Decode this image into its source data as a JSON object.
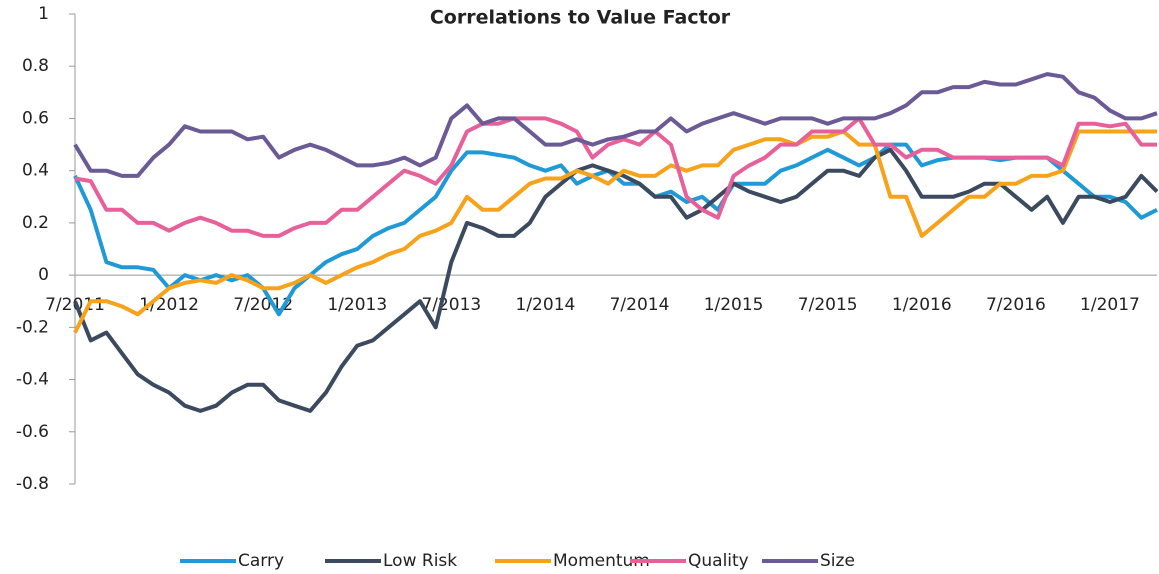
{
  "chart_data": {
    "type": "line",
    "title": "Correlations to Value Factor",
    "categories": [
      "7/2011",
      null,
      null,
      null,
      null,
      null,
      "1/2012",
      null,
      null,
      null,
      null,
      null,
      "7/2012",
      null,
      null,
      null,
      null,
      null,
      "1/2013",
      null,
      null,
      null,
      null,
      null,
      "7/2013",
      null,
      null,
      null,
      null,
      null,
      "1/2014",
      null,
      null,
      null,
      null,
      null,
      "7/2014",
      null,
      null,
      null,
      null,
      null,
      "1/2015",
      null,
      null,
      null,
      null,
      null,
      "7/2015",
      null,
      null,
      null,
      null,
      null,
      "1/2016",
      null,
      null,
      null,
      null,
      null,
      "7/2016",
      null,
      null,
      null,
      null,
      null,
      "1/2017",
      null,
      null,
      null
    ],
    "series": [
      {
        "name": "Carry",
        "color": "#1f9ad6",
        "values": [
          0.38,
          0.25,
          0.05,
          0.03,
          0.03,
          0.02,
          -0.05,
          0,
          -0.02,
          0,
          -0.02,
          0,
          -0.05,
          -0.15,
          -0.05,
          0,
          0.05,
          0.08,
          0.1,
          0.15,
          0.18,
          0.2,
          0.25,
          0.3,
          0.4,
          0.47,
          0.47,
          0.46,
          0.45,
          0.42,
          0.4,
          0.42,
          0.35,
          0.38,
          0.4,
          0.35,
          0.35,
          0.3,
          0.32,
          0.28,
          0.3,
          0.25,
          0.35,
          0.35,
          0.35,
          0.4,
          0.42,
          0.45,
          0.48,
          0.45,
          0.42,
          0.45,
          0.5,
          0.5,
          0.42,
          0.44,
          0.45,
          0.45,
          0.45,
          0.44,
          0.45,
          0.45,
          0.45,
          0.4,
          0.35,
          0.3,
          0.3,
          0.28,
          0.22,
          0.25
        ]
      },
      {
        "name": "Low Risk",
        "color": "#3b4a5e",
        "values": [
          -0.1,
          -0.25,
          -0.22,
          -0.3,
          -0.38,
          -0.42,
          -0.45,
          -0.5,
          -0.52,
          -0.5,
          -0.45,
          -0.42,
          -0.42,
          -0.48,
          -0.5,
          -0.52,
          -0.45,
          -0.35,
          -0.27,
          -0.25,
          -0.2,
          -0.15,
          -0.1,
          -0.2,
          0.05,
          0.2,
          0.18,
          0.15,
          0.15,
          0.2,
          0.3,
          0.35,
          0.4,
          0.42,
          0.4,
          0.38,
          0.35,
          0.3,
          0.3,
          0.22,
          0.25,
          0.3,
          0.35,
          0.32,
          0.3,
          0.28,
          0.3,
          0.35,
          0.4,
          0.4,
          0.38,
          0.45,
          0.48,
          0.4,
          0.3,
          0.3,
          0.3,
          0.32,
          0.35,
          0.35,
          0.3,
          0.25,
          0.3,
          0.2,
          0.3,
          0.3,
          0.28,
          0.3,
          0.38,
          0.32
        ]
      },
      {
        "name": "Momentum",
        "color": "#f7a21b",
        "values": [
          -0.22,
          -0.1,
          -0.1,
          -0.12,
          -0.15,
          -0.1,
          -0.05,
          -0.03,
          -0.02,
          -0.03,
          0,
          -0.02,
          -0.05,
          -0.05,
          -0.03,
          0,
          -0.03,
          0,
          0.03,
          0.05,
          0.08,
          0.1,
          0.15,
          0.17,
          0.2,
          0.3,
          0.25,
          0.25,
          0.3,
          0.35,
          0.37,
          0.37,
          0.4,
          0.38,
          0.35,
          0.4,
          0.38,
          0.38,
          0.42,
          0.4,
          0.42,
          0.42,
          0.48,
          0.5,
          0.52,
          0.52,
          0.5,
          0.53,
          0.53,
          0.55,
          0.5,
          0.5,
          0.3,
          0.3,
          0.15,
          0.2,
          0.25,
          0.3,
          0.3,
          0.35,
          0.35,
          0.38,
          0.38,
          0.4,
          0.55,
          0.55,
          0.55,
          0.55,
          0.55,
          0.55
        ]
      },
      {
        "name": "Quality",
        "color": "#e8609a",
        "values": [
          0.37,
          0.36,
          0.25,
          0.25,
          0.2,
          0.2,
          0.17,
          0.2,
          0.22,
          0.2,
          0.17,
          0.17,
          0.15,
          0.15,
          0.18,
          0.2,
          0.2,
          0.25,
          0.25,
          0.3,
          0.35,
          0.4,
          0.38,
          0.35,
          0.42,
          0.55,
          0.58,
          0.58,
          0.6,
          0.6,
          0.6,
          0.58,
          0.55,
          0.45,
          0.5,
          0.52,
          0.5,
          0.55,
          0.5,
          0.3,
          0.25,
          0.22,
          0.38,
          0.42,
          0.45,
          0.5,
          0.5,
          0.55,
          0.55,
          0.55,
          0.6,
          0.5,
          0.5,
          0.45,
          0.48,
          0.48,
          0.45,
          0.45,
          0.45,
          0.45,
          0.45,
          0.45,
          0.45,
          0.42,
          0.58,
          0.58,
          0.57,
          0.58,
          0.5,
          0.5
        ]
      },
      {
        "name": "Size",
        "color": "#6b5a96",
        "values": [
          0.5,
          0.4,
          0.4,
          0.38,
          0.38,
          0.45,
          0.5,
          0.57,
          0.55,
          0.55,
          0.55,
          0.52,
          0.53,
          0.45,
          0.48,
          0.5,
          0.48,
          0.45,
          0.42,
          0.42,
          0.43,
          0.45,
          0.42,
          0.45,
          0.6,
          0.65,
          0.58,
          0.6,
          0.6,
          0.55,
          0.5,
          0.5,
          0.52,
          0.5,
          0.52,
          0.53,
          0.55,
          0.55,
          0.6,
          0.55,
          0.58,
          0.6,
          0.62,
          0.6,
          0.58,
          0.6,
          0.6,
          0.6,
          0.58,
          0.6,
          0.6,
          0.6,
          0.62,
          0.65,
          0.7,
          0.7,
          0.72,
          0.72,
          0.74,
          0.73,
          0.73,
          0.75,
          0.77,
          0.76,
          0.7,
          0.68,
          0.63,
          0.6,
          0.6,
          0.62
        ]
      }
    ],
    "ylim": [
      -0.8,
      1
    ],
    "yticks": [
      -0.8,
      -0.6,
      -0.4,
      -0.2,
      0,
      0.2,
      0.4,
      0.6,
      0.8,
      1
    ],
    "grid": false,
    "legend": "bottom"
  }
}
